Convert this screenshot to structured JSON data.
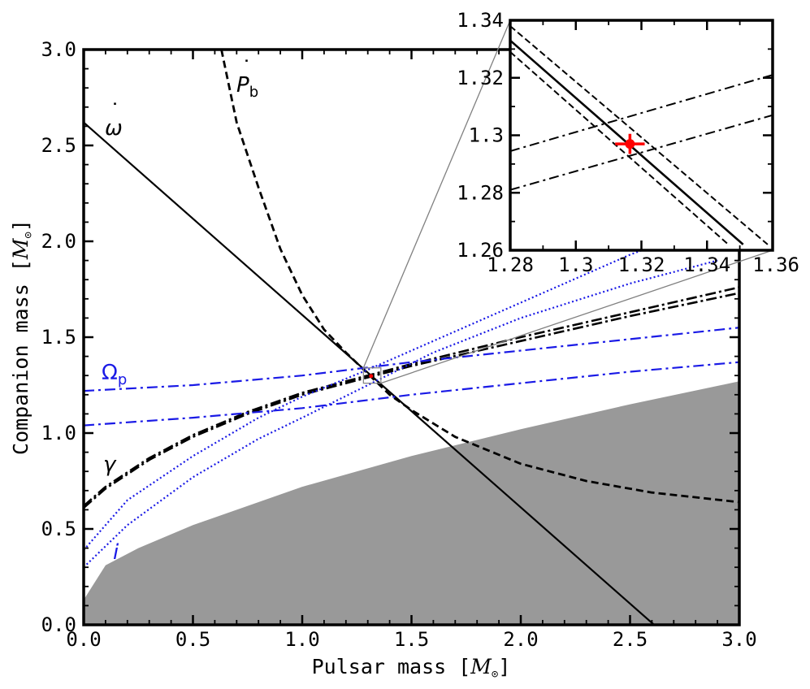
{
  "chart_data": [
    {
      "type": "line",
      "panel": "main",
      "xlabel": "Pulsar mass [",
      "ylabel": "Companion mass [",
      "unit_symbol": "M",
      "xlim": [
        0,
        3
      ],
      "ylim": [
        0,
        3
      ],
      "x_ticks": [
        "0.0",
        "0.5",
        "1.0",
        "1.5",
        "2.0",
        "2.5",
        "3.0"
      ],
      "y_ticks": [
        "0.0",
        "0.5",
        "1.0",
        "1.5",
        "2.0",
        "2.5",
        "3.0"
      ],
      "shaded_region": {
        "color": "#999999",
        "boundary": [
          [
            0,
            0.13
          ],
          [
            0.1,
            0.31
          ],
          [
            0.25,
            0.4
          ],
          [
            0.5,
            0.52
          ],
          [
            1.0,
            0.72
          ],
          [
            1.5,
            0.88
          ],
          [
            2.0,
            1.02
          ],
          [
            2.5,
            1.15
          ],
          [
            3.0,
            1.27
          ]
        ]
      },
      "series": [
        {
          "label": "ω",
          "label_accent": "˙",
          "color": "#000000",
          "style": "solid",
          "points": [
            [
              0,
              2.62
            ],
            [
              2.61,
              0
            ]
          ]
        },
        {
          "label": "P",
          "label_sub": "b",
          "label_accent": "˙",
          "color": "#000000",
          "style": "dashed",
          "points": [
            [
              0.63,
              3.0
            ],
            [
              0.7,
              2.62
            ],
            [
              0.8,
              2.28
            ],
            [
              0.9,
              1.96
            ],
            [
              1.0,
              1.72
            ],
            [
              1.1,
              1.54
            ],
            [
              1.2,
              1.42
            ],
            [
              1.3,
              1.31
            ],
            [
              1.4,
              1.2
            ],
            [
              1.5,
              1.12
            ],
            [
              1.7,
              0.98
            ],
            [
              2.0,
              0.84
            ],
            [
              2.3,
              0.75
            ],
            [
              2.6,
              0.69
            ],
            [
              3.0,
              0.64
            ]
          ]
        },
        {
          "label": "γ",
          "color": "#000000",
          "style": "dashdot",
          "points": [
            [
              0,
              0.61
            ],
            [
              0.1,
              0.71
            ],
            [
              0.3,
              0.86
            ],
            [
              0.5,
              0.98
            ],
            [
              0.75,
              1.1
            ],
            [
              1.0,
              1.2
            ],
            [
              1.32,
              1.296
            ],
            [
              1.5,
              1.35
            ],
            [
              2.0,
              1.48
            ],
            [
              2.5,
              1.61
            ],
            [
              3.0,
              1.73
            ]
          ]
        },
        {
          "label": "",
          "color": "#000000",
          "style": "dashdot",
          "points": [
            [
              0,
              0.62
            ],
            [
              0.1,
              0.72
            ],
            [
              0.3,
              0.87
            ],
            [
              0.5,
              0.99
            ],
            [
              0.75,
              1.11
            ],
            [
              1.0,
              1.21
            ],
            [
              1.32,
              1.306
            ],
            [
              1.5,
              1.36
            ],
            [
              2.0,
              1.5
            ],
            [
              2.5,
              1.63
            ],
            [
              3.0,
              1.76
            ]
          ]
        },
        {
          "label": "Ω",
          "label_sub": "p",
          "color": "#1a1ae6",
          "style": "dashdot",
          "points": [
            [
              0,
              1.22
            ],
            [
              0.5,
              1.25
            ],
            [
              1.0,
              1.3
            ],
            [
              1.5,
              1.37
            ],
            [
              2.0,
              1.43
            ],
            [
              2.5,
              1.49
            ],
            [
              3.0,
              1.55
            ]
          ]
        },
        {
          "label": "",
          "color": "#1a1ae6",
          "style": "dashdot",
          "points": [
            [
              0,
              1.04
            ],
            [
              0.5,
              1.08
            ],
            [
              1.0,
              1.13
            ],
            [
              1.5,
              1.2
            ],
            [
              2.0,
              1.26
            ],
            [
              2.5,
              1.32
            ],
            [
              3.0,
              1.37
            ]
          ]
        },
        {
          "label": "i",
          "color": "#1a1ae6",
          "style": "dotted",
          "points": [
            [
              0,
              0.39
            ],
            [
              0.2,
              0.65
            ],
            [
              0.5,
              0.88
            ],
            [
              0.8,
              1.08
            ],
            [
              1.0,
              1.19
            ],
            [
              1.3,
              1.33
            ],
            [
              1.6,
              1.48
            ],
            [
              2.0,
              1.68
            ],
            [
              2.5,
              1.93
            ],
            [
              2.9,
              2.1
            ]
          ]
        },
        {
          "label": "",
          "color": "#1a1ae6",
          "style": "dotted",
          "points": [
            [
              0,
              0.3
            ],
            [
              0.2,
              0.52
            ],
            [
              0.5,
              0.77
            ],
            [
              0.8,
              0.97
            ],
            [
              1.0,
              1.08
            ],
            [
              1.3,
              1.25
            ],
            [
              1.6,
              1.42
            ],
            [
              2.0,
              1.6
            ],
            [
              2.5,
              1.78
            ],
            [
              2.9,
              1.9
            ]
          ]
        }
      ],
      "marker": {
        "x": 1.315,
        "y": 1.297,
        "color": "#ff0000"
      },
      "zoom_box": {
        "x": [
          1.28,
          1.36
        ],
        "y": [
          1.26,
          1.34
        ],
        "color": "#808080"
      }
    },
    {
      "type": "line",
      "panel": "inset",
      "xlim": [
        1.28,
        1.36
      ],
      "ylim": [
        1.26,
        1.34
      ],
      "x_ticks": [
        "1.28",
        "1.3",
        "1.32",
        "1.34",
        "1.36"
      ],
      "y_ticks": [
        "1.26",
        "1.28",
        "1.3",
        "1.32",
        "1.34"
      ],
      "series": [
        {
          "color": "#000000",
          "style": "solid",
          "points": [
            [
              1.28,
              1.333
            ],
            [
              1.351,
              1.262
            ]
          ]
        },
        {
          "color": "#000000",
          "style": "dashed",
          "points": [
            [
              1.28,
              1.338
            ],
            [
              1.3585,
              1.262
            ]
          ]
        },
        {
          "color": "#000000",
          "style": "dashed",
          "points": [
            [
              1.28,
              1.329
            ],
            [
              1.3465,
              1.262
            ]
          ]
        },
        {
          "color": "#000000",
          "style": "dashdot",
          "points": [
            [
              1.28,
              1.2945
            ],
            [
              1.36,
              1.321
            ]
          ]
        },
        {
          "color": "#000000",
          "style": "dashdot",
          "points": [
            [
              1.28,
              1.281
            ],
            [
              1.36,
              1.307
            ]
          ]
        }
      ],
      "marker": {
        "x": 1.3165,
        "y": 1.297,
        "xerr": 0.0045,
        "yerr": 0.0035,
        "color": "#ff0000"
      }
    }
  ]
}
